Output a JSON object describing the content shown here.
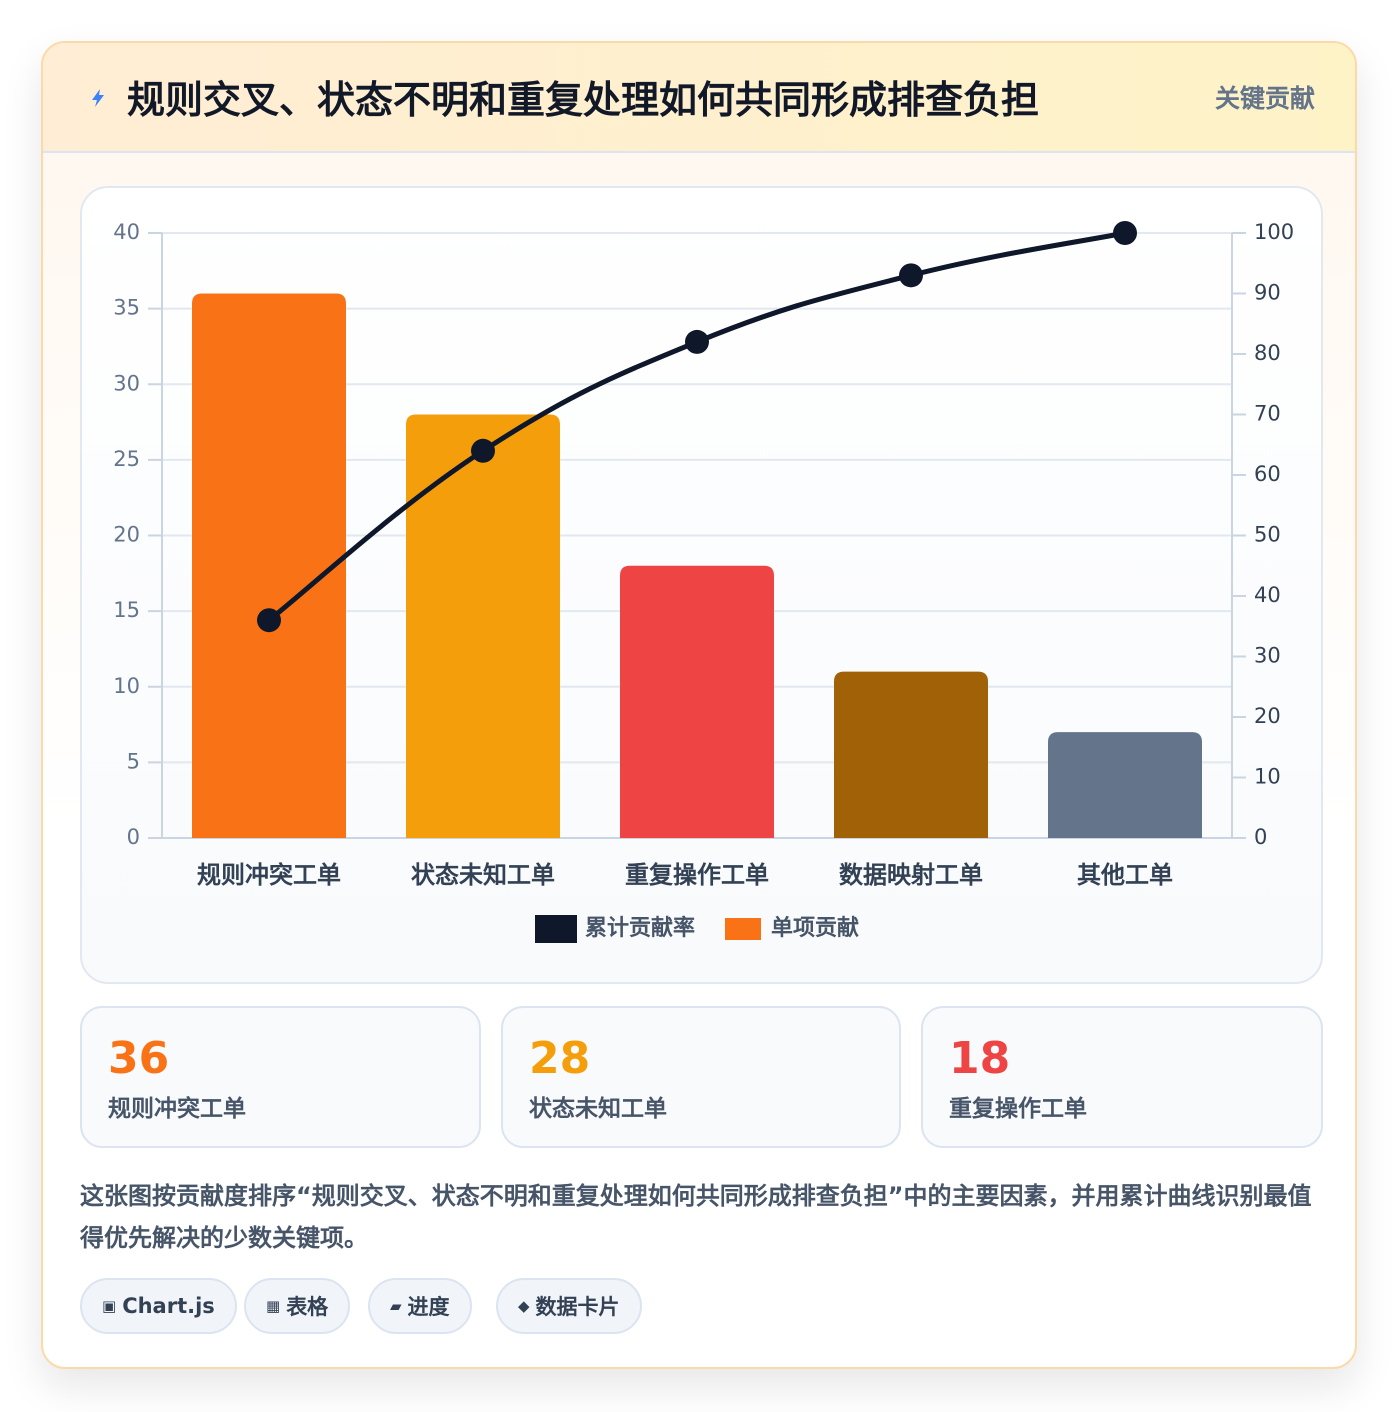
{
  "header": {
    "icon": "lightning-icon",
    "title": "规则交叉、状态不明和重复处理如何共同形成排查负担",
    "badge": "关键贡献"
  },
  "chart_data": {
    "type": "bar",
    "categories": [
      "规则冲突工单",
      "状态未知工单",
      "重复操作工单",
      "数据映射工单",
      "其他工单"
    ],
    "bar_colors": [
      "#f97316",
      "#f59e0b",
      "#ef4444",
      "#a16207",
      "#64748b"
    ],
    "series": [
      {
        "name": "单项贡献",
        "type": "bar",
        "axis": "left",
        "color": "#f97316",
        "values": [
          36,
          28,
          18,
          11,
          7
        ]
      },
      {
        "name": "累计贡献率",
        "type": "line",
        "axis": "right",
        "color": "#0f172a",
        "values": [
          36,
          64,
          82,
          93,
          100
        ]
      }
    ],
    "y_left": {
      "ylim": [
        0,
        40
      ],
      "ticks": [
        "0",
        "5",
        "10",
        "15",
        "20",
        "25",
        "30",
        "35",
        "40"
      ]
    },
    "y_right": {
      "ylim": [
        0,
        100
      ],
      "ticks": [
        "0",
        "10",
        "20",
        "30",
        "40",
        "50",
        "60",
        "70",
        "80",
        "90",
        "100"
      ]
    },
    "legend": [
      {
        "label": "累计贡献率",
        "color": "#0f172a"
      },
      {
        "label": "单项贡献",
        "color": "#f97316"
      }
    ],
    "legend_position": "bottom",
    "grid": true
  },
  "stats": [
    {
      "value": "36",
      "label": "规则冲突工单",
      "color": "#f97316"
    },
    {
      "value": "28",
      "label": "状态未知工单",
      "color": "#f59e0b"
    },
    {
      "value": "18",
      "label": "重复操作工单",
      "color": "#ef4444"
    }
  ],
  "description": "这张图按贡献度排序“规则交叉、状态不明和重复处理如何共同形成排查负担”中的主要因素，并用累计曲线识别最值得优先解决的少数关键项。",
  "chips": [
    {
      "icon_glyph": "▣",
      "icon": "chart-icon",
      "label": "Chart.js"
    },
    {
      "icon_glyph": "▦",
      "icon": "table-icon",
      "label": "表格"
    },
    {
      "icon_glyph": "▰",
      "icon": "progress-icon",
      "label": "进度"
    },
    {
      "icon_glyph": "◆",
      "icon": "card-icon",
      "label": "数据卡片"
    }
  ]
}
